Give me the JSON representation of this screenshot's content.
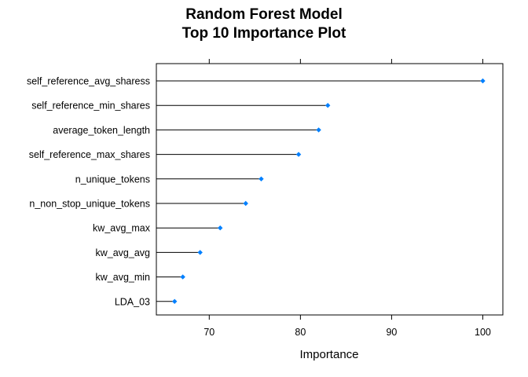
{
  "chart_data": {
    "type": "scatter",
    "title_lines": [
      "Random Forest Model",
      "Top 10 Importance Plot"
    ],
    "xlabel": "Importance",
    "ylabel": "",
    "xlim": [
      64.2,
      102.2
    ],
    "xticks": [
      70,
      80,
      90,
      100
    ],
    "grid": false,
    "legend": "none",
    "marker_color": "#0080ff",
    "line_color": "#000000",
    "categories": [
      "self_reference_avg_sharess",
      "self_reference_min_shares",
      "average_token_length",
      "self_reference_max_shares",
      "n_unique_tokens",
      "n_non_stop_unique_tokens",
      "kw_avg_max",
      "kw_avg_avg",
      "kw_avg_min",
      "LDA_03"
    ],
    "values": [
      100,
      83,
      82,
      79.8,
      75.7,
      74,
      71.2,
      69,
      67.1,
      66.2
    ]
  }
}
